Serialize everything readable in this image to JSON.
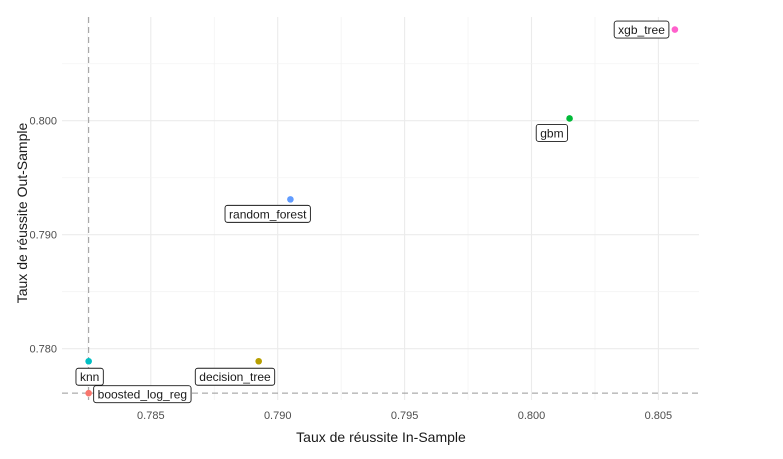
{
  "chart_data": {
    "type": "scatter",
    "title": "",
    "xlabel": "Taux de réussite In-Sample",
    "ylabel": "Taux de réussite Out-Sample",
    "xlim": [
      0.7815,
      0.8066
    ],
    "ylim": [
      0.7755,
      0.8091
    ],
    "x_ticks": [
      0.785,
      0.79,
      0.795,
      0.8,
      0.805
    ],
    "x_tick_labels": [
      "0.785",
      "0.790",
      "0.795",
      "0.800",
      "0.805"
    ],
    "y_ticks": [
      0.78,
      0.79,
      0.8
    ],
    "y_tick_labels": [
      "0.780",
      "0.790",
      "0.800"
    ],
    "grid": true,
    "reference_lines": {
      "vertical_x": 0.78255,
      "horizontal_y": 0.7761,
      "style": "dashed",
      "color": "#999999"
    },
    "points": [
      {
        "label": "xgb_tree",
        "x": 0.80565,
        "y": 0.808,
        "color": "#FF61CC",
        "label_pos": "left"
      },
      {
        "label": "gbm",
        "x": 0.8015,
        "y": 0.8002,
        "color": "#00BA38",
        "label_pos": "below-left"
      },
      {
        "label": "random_forest",
        "x": 0.7905,
        "y": 0.7931,
        "color": "#619CFF",
        "label_pos": "below-left"
      },
      {
        "label": "knn",
        "x": 0.78255,
        "y": 0.7789,
        "color": "#00BFC4",
        "label_pos": "below"
      },
      {
        "label": "decision_tree",
        "x": 0.78925,
        "y": 0.7789,
        "color": "#B79F00",
        "label_pos": "below-left"
      },
      {
        "label": "boosted_log_reg",
        "x": 0.78255,
        "y": 0.7761,
        "color": "#F8766D",
        "label_pos": "right"
      }
    ]
  }
}
